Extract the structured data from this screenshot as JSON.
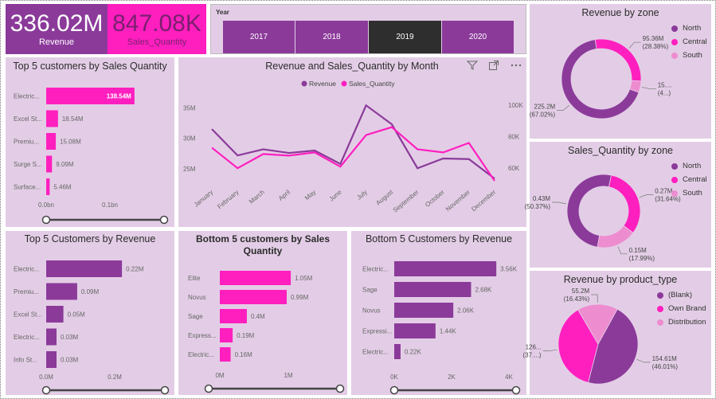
{
  "kpis": {
    "revenue": {
      "value": "336.02M",
      "label": "Revenue"
    },
    "quantity": {
      "value": "847.08K",
      "label": "Sales_Quantity"
    }
  },
  "year_slicer": {
    "title": "Year",
    "options": [
      "2017",
      "2018",
      "2019",
      "2020"
    ],
    "selected": "2019"
  },
  "colors": {
    "purple": "#8b3a9a",
    "pink": "#ff1fbf",
    "light_pink": "#ee8cd0",
    "panel": "#e3cde6",
    "dark": "#2e2e2e"
  },
  "icons": [
    "filter-icon",
    "focus-mode-icon",
    "more-options-icon"
  ],
  "chart_data": [
    {
      "id": "top5_qty",
      "type": "bar",
      "orientation": "horizontal",
      "title": "Top 5 customers by Sales Quantity",
      "categories": [
        "Electric...",
        "Excel St...",
        "Premiu...",
        "Surge S...",
        "Surface..."
      ],
      "values": [
        138.54,
        18.54,
        15.08,
        9.09,
        5.46
      ],
      "value_labels": [
        "138.54M",
        "18.54M",
        "15.08M",
        "9.09M",
        "5.46M"
      ],
      "xticks": [
        "0.0bn",
        "0.1bn"
      ],
      "xlim": [
        0,
        200
      ]
    },
    {
      "id": "monthly",
      "type": "line",
      "title": "Revenue and Sales_Quantity by Month",
      "x": [
        "January",
        "February",
        "March",
        "April",
        "May",
        "June",
        "July",
        "August",
        "September",
        "October",
        "November",
        "December"
      ],
      "series": [
        {
          "name": "Revenue",
          "values": [
            31.5,
            27.2,
            28.2,
            27.6,
            28.0,
            25.8,
            35.4,
            32.3,
            25.1,
            26.7,
            26.6,
            23.4
          ]
        },
        {
          "name": "Sales_Quantity",
          "values": [
            73,
            60,
            69,
            68,
            70,
            61,
            81,
            86,
            72,
            70,
            76,
            52
          ]
        }
      ],
      "yticks_left": [
        "35M",
        "30M",
        "25M"
      ],
      "yticks_right": [
        "100K",
        "80K",
        "60K"
      ],
      "ylim_left": [
        22,
        37
      ],
      "ylim_right": [
        48,
        106
      ]
    },
    {
      "id": "zone_rev",
      "type": "pie",
      "donut": true,
      "title": "Revenue by zone",
      "labels": [
        "North",
        "Central",
        "South"
      ],
      "values": [
        225.2,
        95.36,
        15.4
      ],
      "slice_labels": [
        "225.2M (67.02%)",
        "95.36M (28.38%)",
        "15.... (4...)"
      ]
    },
    {
      "id": "zone_qty",
      "type": "pie",
      "donut": true,
      "title": "Sales_Quantity by zone",
      "labels": [
        "North",
        "Central",
        "South"
      ],
      "values": [
        0.43,
        0.27,
        0.15
      ],
      "slice_labels": [
        "0.43M (50.37%)",
        "0.27M (31.64%)",
        "0.15M (17.99%)"
      ]
    },
    {
      "id": "top5_rev",
      "type": "bar",
      "orientation": "horizontal",
      "title": "Top 5 Customers by Revenue",
      "categories": [
        "Electric...",
        "Premiu...",
        "Excel St...",
        "Electric...",
        "Info St..."
      ],
      "values": [
        0.22,
        0.09,
        0.05,
        0.03,
        0.03
      ],
      "value_labels": [
        "0.22M",
        "0.09M",
        "0.05M",
        "0.03M",
        "0.03M"
      ],
      "xticks": [
        "0.0M",
        "0.2M"
      ],
      "xlim": [
        0,
        0.37
      ]
    },
    {
      "id": "bottom5_qty",
      "type": "bar",
      "orientation": "horizontal",
      "title": "Bottom 5 customers by Sales Quantity",
      "categories": [
        "Elite",
        "Novus",
        "Sage",
        "Express...",
        "Electric..."
      ],
      "values": [
        1.05,
        0.99,
        0.4,
        0.19,
        0.16
      ],
      "value_labels": [
        "1.05M",
        "0.99M",
        "0.4M",
        "0.19M",
        "0.16M"
      ],
      "xticks": [
        "0M",
        "1M"
      ],
      "xlim": [
        0,
        1.65
      ]
    },
    {
      "id": "bottom5_rev",
      "type": "bar",
      "orientation": "horizontal",
      "title": "Bottom 5 Customers by Revenue",
      "categories": [
        "Electric...",
        "Sage",
        "Novus",
        "Expressi...",
        "Electric..."
      ],
      "values": [
        3.56,
        2.68,
        2.06,
        1.44,
        0.22
      ],
      "value_labels": [
        "3.56K",
        "2.68K",
        "2.06K",
        "1.44K",
        "0.22K"
      ],
      "xticks": [
        "0K",
        "2K",
        "4K"
      ],
      "xlim": [
        0,
        4.0
      ]
    },
    {
      "id": "product_rev",
      "type": "pie",
      "donut": false,
      "title": "Revenue by product_type",
      "labels": [
        "(Blank)",
        "Own Brand",
        "Distribution"
      ],
      "values": [
        154.61,
        126.0,
        55.2
      ],
      "slice_labels": [
        "154.61M (46.01%)",
        "126... (37....)",
        "55.2M (16.43%)"
      ]
    }
  ]
}
